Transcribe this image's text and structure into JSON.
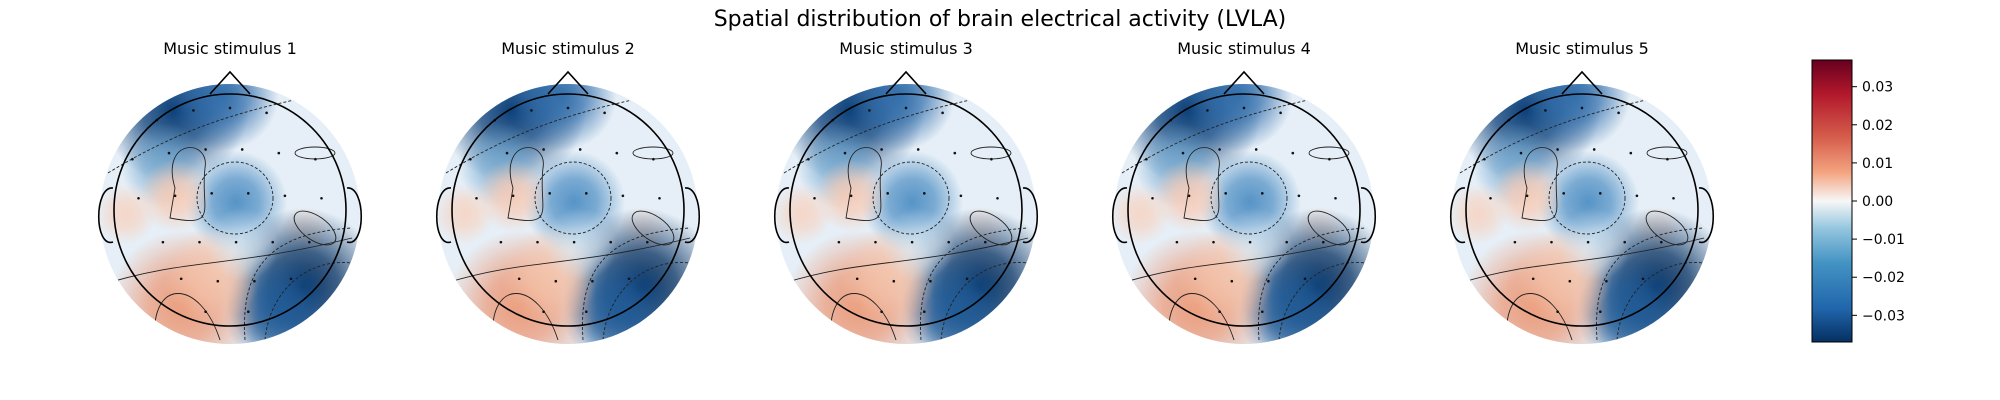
{
  "chart_data": {
    "type": "heatmap",
    "title": "Spatial distribution of brain electrical activity (LVLA)",
    "panels": [
      {
        "title": "Music stimulus 1"
      },
      {
        "title": "Music stimulus 2"
      },
      {
        "title": "Music stimulus 3"
      },
      {
        "title": "Music stimulus 4"
      },
      {
        "title": "Music stimulus 5"
      }
    ],
    "colorbar": {
      "colormap": "RdBu_r",
      "range": [
        -0.037,
        0.037
      ],
      "ticks": [
        0.03,
        0.02,
        0.01,
        0.0,
        -0.01,
        -0.02,
        -0.03
      ],
      "tick_labels": [
        "0.03",
        "0.02",
        "0.01",
        "0.00",
        "−0.01",
        "−0.02",
        "−0.03"
      ]
    },
    "colors": {
      "strong_positive": "#67001f",
      "neutral": "#f7f7f7",
      "strong_negative": "#053061"
    }
  }
}
